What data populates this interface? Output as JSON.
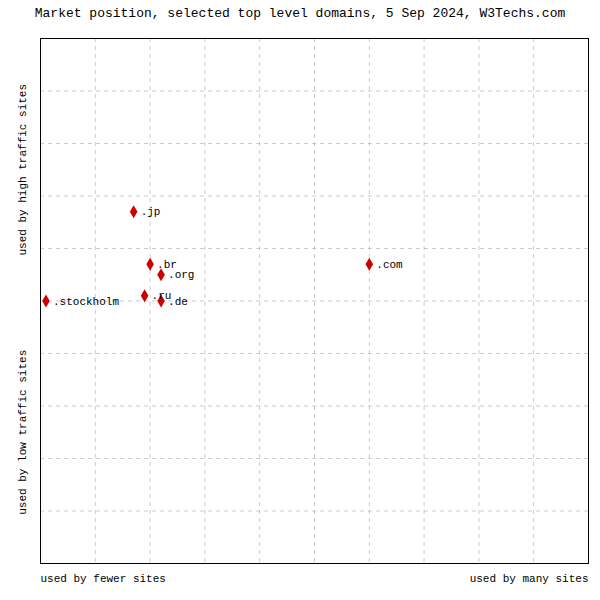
{
  "chart_data": {
    "type": "scatter",
    "title": "Market position, selected top level domains, 5 Sep 2024, W3Techs.com",
    "xlabel_left": "used by fewer sites",
    "xlabel_right": "used by many sites",
    "ylabel_top": "used by high traffic sites",
    "ylabel_bottom": "used by low traffic sites",
    "labels": [
      ".jp",
      ".br",
      ".org",
      ".ru",
      ".de",
      ".com",
      ".stockholm"
    ],
    "x": [
      17,
      20,
      22,
      19,
      22,
      60,
      1
    ],
    "values": [
      67,
      57,
      55,
      51,
      50,
      57,
      50
    ],
    "color": "#cc0000",
    "marker": "diamond",
    "xlim": [
      0,
      100
    ],
    "ylim": [
      0,
      100
    ],
    "xticks": [
      0,
      10,
      20,
      30,
      40,
      50,
      60,
      70,
      80,
      90,
      100
    ],
    "yticks": [
      0,
      10,
      20,
      30,
      40,
      50,
      60,
      70,
      80,
      90,
      100
    ],
    "grid": true,
    "tick_labels": false
  }
}
